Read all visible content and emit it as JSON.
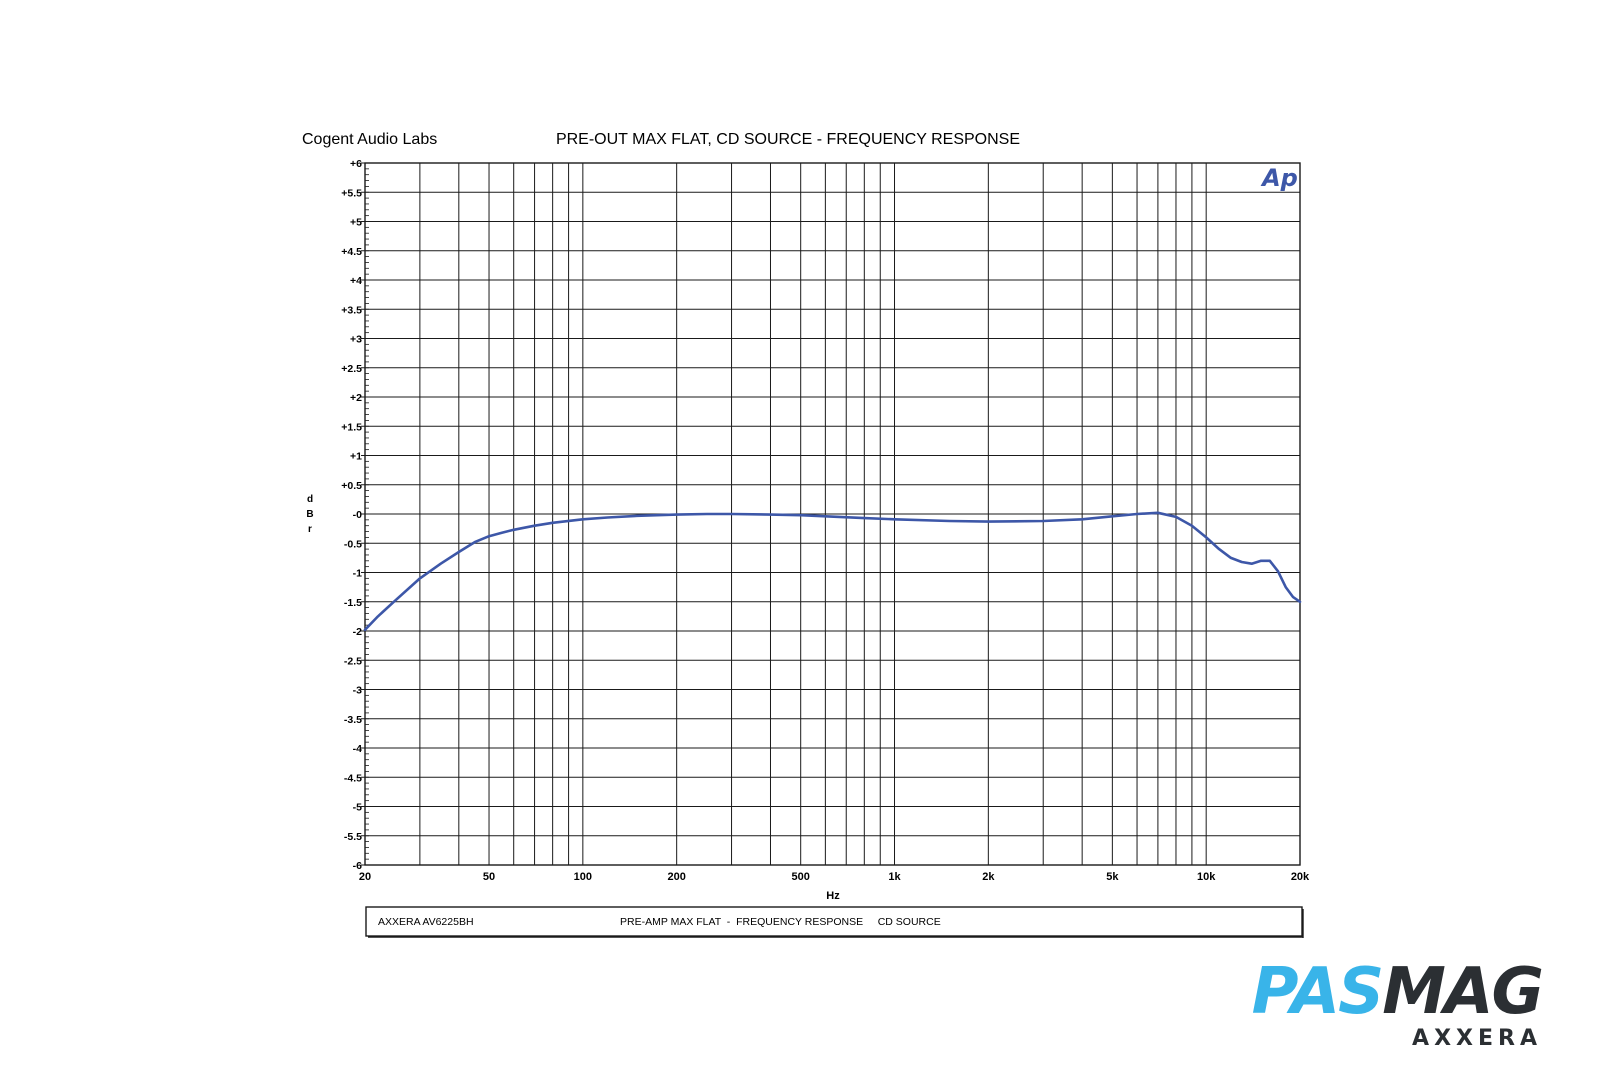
{
  "header": {
    "lab_name": "Cogent Audio Labs",
    "title": "PRE-OUT MAX FLAT, CD SOURCE  -  FREQUENCY RESPONSE",
    "logo_text": "Ap"
  },
  "footer": {
    "device": "AXXERA  AV6225BH",
    "description": "PRE-AMP MAX FLAT  -  FREQUENCY RESPONSE     CD SOURCE"
  },
  "brand": {
    "part1": "PAS",
    "part2": "MAG",
    "subtitle": "AXXERA",
    "colors": {
      "part1": "#39b4e9",
      "part2": "#2b2f33"
    }
  },
  "colors": {
    "trace": "#3d57a8",
    "grid": "#1a1a1a",
    "logo": "#3d57a8"
  },
  "chart_data": {
    "type": "line",
    "title": "PRE-OUT MAX FLAT, CD SOURCE  -  FREQUENCY RESPONSE",
    "xlabel": "Hz",
    "ylabel": "dBr",
    "x_scale": "log",
    "xlim": [
      20,
      20000
    ],
    "ylim": [
      -6,
      6
    ],
    "grid": true,
    "x_ticks": [
      {
        "value": 20,
        "label": "20"
      },
      {
        "value": 50,
        "label": "50"
      },
      {
        "value": 100,
        "label": "100"
      },
      {
        "value": 200,
        "label": "200"
      },
      {
        "value": 500,
        "label": "500"
      },
      {
        "value": 1000,
        "label": "1k"
      },
      {
        "value": 2000,
        "label": "2k"
      },
      {
        "value": 5000,
        "label": "5k"
      },
      {
        "value": 10000,
        "label": "10k"
      },
      {
        "value": 20000,
        "label": "20k"
      }
    ],
    "y_ticks": [
      {
        "value": 6,
        "label": "+6"
      },
      {
        "value": 5.5,
        "label": "+5.5"
      },
      {
        "value": 5,
        "label": "+5"
      },
      {
        "value": 4.5,
        "label": "+4.5"
      },
      {
        "value": 4,
        "label": "+4"
      },
      {
        "value": 3.5,
        "label": "+3.5"
      },
      {
        "value": 3,
        "label": "+3"
      },
      {
        "value": 2.5,
        "label": "+2.5"
      },
      {
        "value": 2,
        "label": "+2"
      },
      {
        "value": 1.5,
        "label": "+1.5"
      },
      {
        "value": 1,
        "label": "+1"
      },
      {
        "value": 0.5,
        "label": "+0.5"
      },
      {
        "value": 0,
        "label": "-0"
      },
      {
        "value": -0.5,
        "label": "-0.5"
      },
      {
        "value": -1,
        "label": "-1"
      },
      {
        "value": -1.5,
        "label": "-1.5"
      },
      {
        "value": -2,
        "label": "-2"
      },
      {
        "value": -2.5,
        "label": "-2.5"
      },
      {
        "value": -3,
        "label": "-3"
      },
      {
        "value": -3.5,
        "label": "-3.5"
      },
      {
        "value": -4,
        "label": "-4"
      },
      {
        "value": -4.5,
        "label": "-4.5"
      },
      {
        "value": -5,
        "label": "-5"
      },
      {
        "value": -5.5,
        "label": "-5.5"
      },
      {
        "value": -6,
        "label": "-6"
      }
    ],
    "series": [
      {
        "x": [
          20,
          22,
          25,
          30,
          35,
          40,
          45,
          50,
          55,
          60,
          70,
          80,
          100,
          120,
          150,
          200,
          250,
          300,
          400,
          500,
          600,
          800,
          1000,
          1500,
          2000,
          3000,
          4000,
          5000,
          6000,
          7000,
          8000,
          9000,
          10000,
          11000,
          12000,
          13000,
          14000,
          15000,
          16000,
          17000,
          18000,
          19000,
          20000
        ],
        "y": [
          -1.98,
          -1.75,
          -1.48,
          -1.1,
          -0.85,
          -0.65,
          -0.48,
          -0.38,
          -0.32,
          -0.27,
          -0.2,
          -0.15,
          -0.09,
          -0.06,
          -0.03,
          -0.01,
          0.0,
          0.0,
          -0.01,
          -0.02,
          -0.04,
          -0.07,
          -0.09,
          -0.12,
          -0.13,
          -0.12,
          -0.09,
          -0.04,
          0.0,
          0.02,
          -0.05,
          -0.2,
          -0.4,
          -0.6,
          -0.75,
          -0.82,
          -0.85,
          -0.8,
          -0.8,
          -0.98,
          -1.25,
          -1.42,
          -1.5
        ]
      }
    ]
  }
}
